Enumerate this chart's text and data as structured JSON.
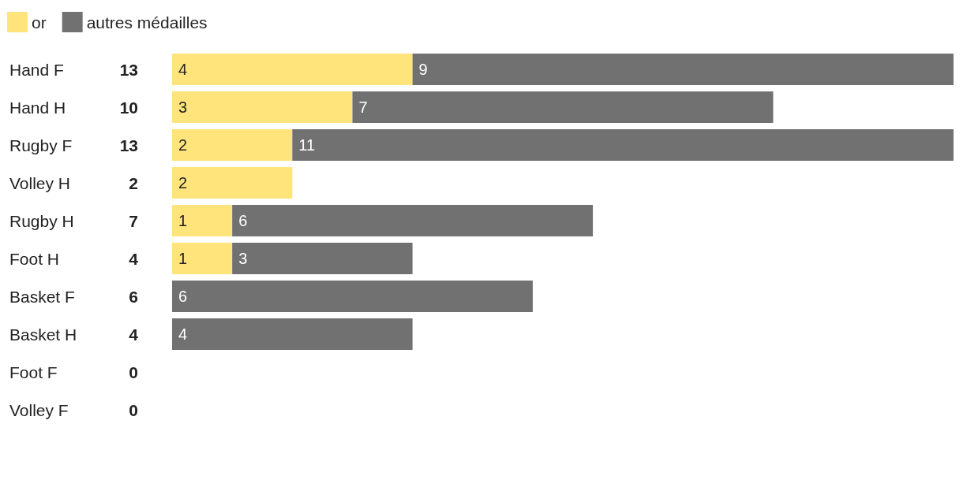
{
  "chart_data": {
    "type": "bar",
    "orientation": "horizontal",
    "stacked": true,
    "legend": "top left",
    "categories": [
      "Hand F",
      "Hand H",
      "Rugby F",
      "Volley H",
      "Rugby H",
      "Foot H",
      "Basket F",
      "Basket H",
      "Foot F",
      "Volley F"
    ],
    "totals": [
      "13",
      "10",
      "13",
      "2",
      "7",
      "4",
      "6",
      "4",
      "0",
      "0"
    ],
    "series": [
      {
        "name": "or",
        "color": "#fee47a",
        "values": [
          4,
          3,
          2,
          2,
          1,
          1,
          0,
          0,
          0,
          0
        ],
        "value_labels": [
          "4",
          "3",
          "2",
          "2",
          "1",
          "1",
          null,
          null,
          null,
          null
        ]
      },
      {
        "name": "autres médailles",
        "color": "#717171",
        "values": [
          9,
          7,
          11,
          0,
          6,
          3,
          6,
          4,
          0,
          0
        ],
        "value_labels": [
          "9",
          "7",
          "11",
          null,
          "6",
          "3",
          "6",
          "4",
          null,
          null
        ]
      }
    ]
  }
}
